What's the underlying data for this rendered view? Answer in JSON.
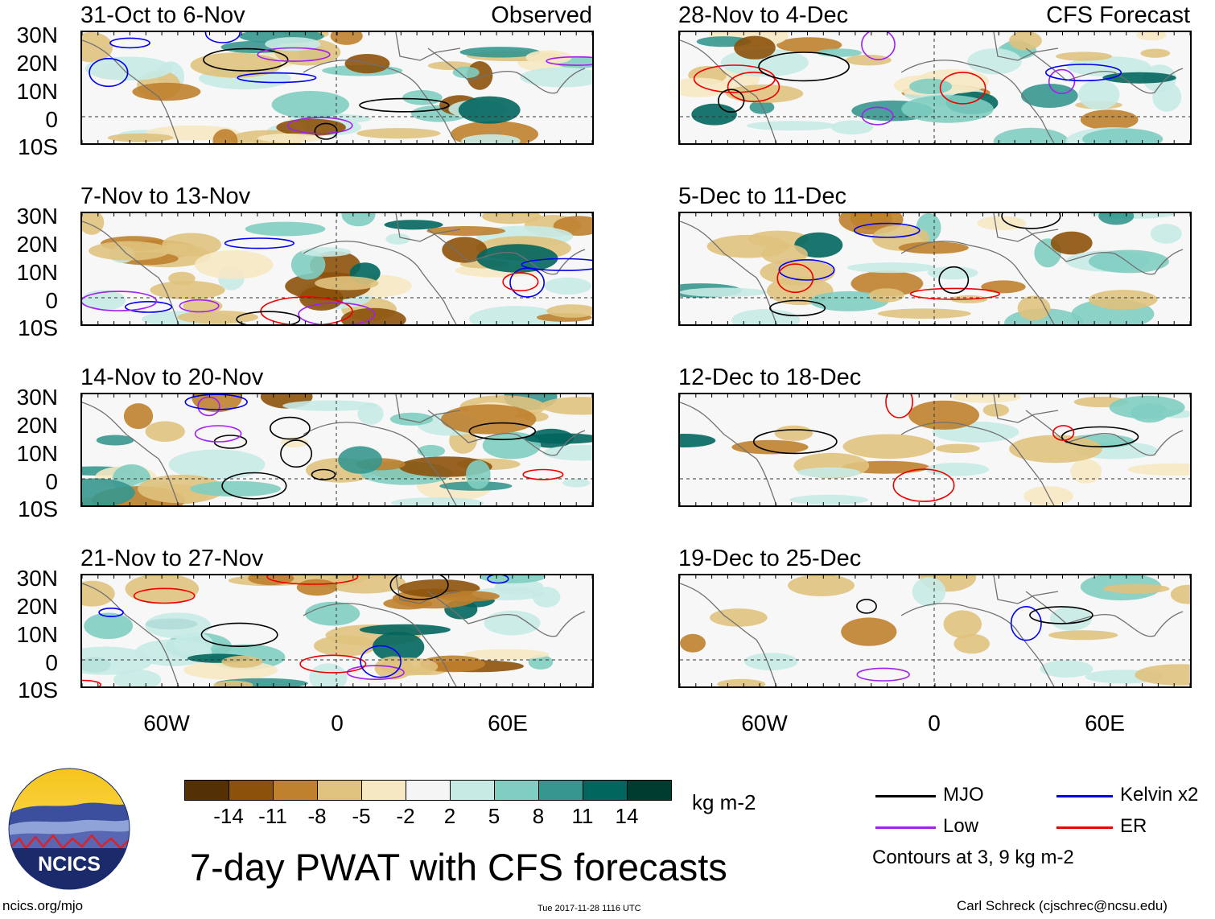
{
  "panels": [
    {
      "title": "31-Oct to 6-Nov",
      "tag": "Observed"
    },
    {
      "title": "7-Nov to 13-Nov",
      "tag": ""
    },
    {
      "title": "14-Nov to 20-Nov",
      "tag": ""
    },
    {
      "title": "21-Nov to 27-Nov",
      "tag": ""
    },
    {
      "title": "28-Nov to 4-Dec",
      "tag": "CFS Forecast"
    },
    {
      "title": "5-Dec to 11-Dec",
      "tag": ""
    },
    {
      "title": "12-Dec to 18-Dec",
      "tag": ""
    },
    {
      "title": "19-Dec to 25-Dec",
      "tag": ""
    }
  ],
  "lat_labels": [
    "30N",
    "20N",
    "10N",
    "0",
    "10S"
  ],
  "lon_labels": [
    "60W",
    "0",
    "60E"
  ],
  "colorbar": {
    "ticks": [
      "-14",
      "-11",
      "-8",
      "-5",
      "-2",
      "2",
      "5",
      "8",
      "11",
      "14"
    ],
    "colors": [
      "#543005",
      "#8c510a",
      "#bf812d",
      "#dfc27d",
      "#f6e8c3",
      "#f5f5f5",
      "#c7eae5",
      "#80cdc1",
      "#35978f",
      "#01665e",
      "#003c30"
    ],
    "unit": "kg m-2"
  },
  "legend": {
    "items": [
      {
        "label": "MJO",
        "color": "#000000"
      },
      {
        "label": "Kelvin x2",
        "color": "#0000ee"
      },
      {
        "label": "Low",
        "color": "#a020f0"
      },
      {
        "label": "ER",
        "color": "#ee0000"
      }
    ],
    "note": "Contours at 3, 9 kg m-2"
  },
  "main_title": "7-day PWAT with CFS forecasts",
  "logo_text": "NCICS",
  "footer": {
    "url": "ncics.org/mjo",
    "timestamp": "Tue 2017-11-28 1116 UTC",
    "credit": "Carl Schreck (cjschrec@ncsu.edu)"
  }
}
